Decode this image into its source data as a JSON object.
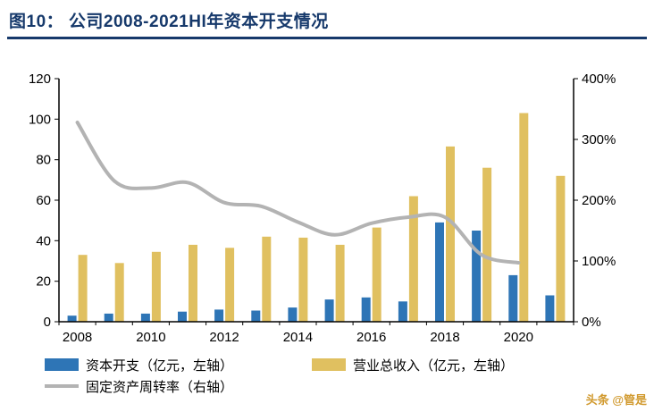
{
  "header": {
    "title": "图10：  公司2008-2021HI年资本开支情况"
  },
  "chart_data": {
    "type": "bar",
    "subtype": "combo-bar-line",
    "title": "公司2008-2021HI年资本开支情况",
    "categories": [
      "2008",
      "2009",
      "2010",
      "2011",
      "2012",
      "2013",
      "2014",
      "2015",
      "2016",
      "2017",
      "2018",
      "2019",
      "2020",
      "2021H1"
    ],
    "x_tick_labels": [
      "2008",
      "2010",
      "2012",
      "2014",
      "2016",
      "2018",
      "2020"
    ],
    "series": [
      {
        "name": "资本开支（亿元，左轴）",
        "type": "bar",
        "axis": "left",
        "color": "#2E75B6",
        "values": [
          3,
          4,
          4,
          5,
          6,
          5.5,
          7,
          11,
          12,
          10,
          49,
          45,
          23,
          13
        ]
      },
      {
        "name": "营业总收入（亿元，左轴）",
        "type": "bar",
        "axis": "left",
        "color": "#E0C060",
        "values": [
          33,
          29,
          34.5,
          38,
          36.5,
          42,
          41.5,
          38,
          46.5,
          62,
          86.5,
          76,
          103,
          72
        ]
      },
      {
        "name": "固定资产周转率（右轴）",
        "type": "line",
        "axis": "right",
        "color": "#B3B3B3",
        "values": [
          328,
          232,
          220,
          229,
          196,
          190,
          164,
          143,
          162,
          172,
          172,
          110,
          97,
          null
        ]
      }
    ],
    "left_axis": {
      "min": 0,
      "max": 120,
      "ticks": [
        "0",
        "20",
        "40",
        "60",
        "80",
        "100",
        "120"
      ]
    },
    "right_axis": {
      "min": 0,
      "max": 400,
      "ticks": [
        "0%",
        "100%",
        "200%",
        "300%",
        "400%"
      ]
    },
    "grid": false,
    "legend_position": "bottom"
  },
  "watermark": "头条 @管是",
  "colors": {
    "title": "#16396B",
    "capex_bar": "#2E75B6",
    "revenue_bar": "#E0C060",
    "turnover_line": "#B3B3B3",
    "watermark": "#D19A2F"
  }
}
